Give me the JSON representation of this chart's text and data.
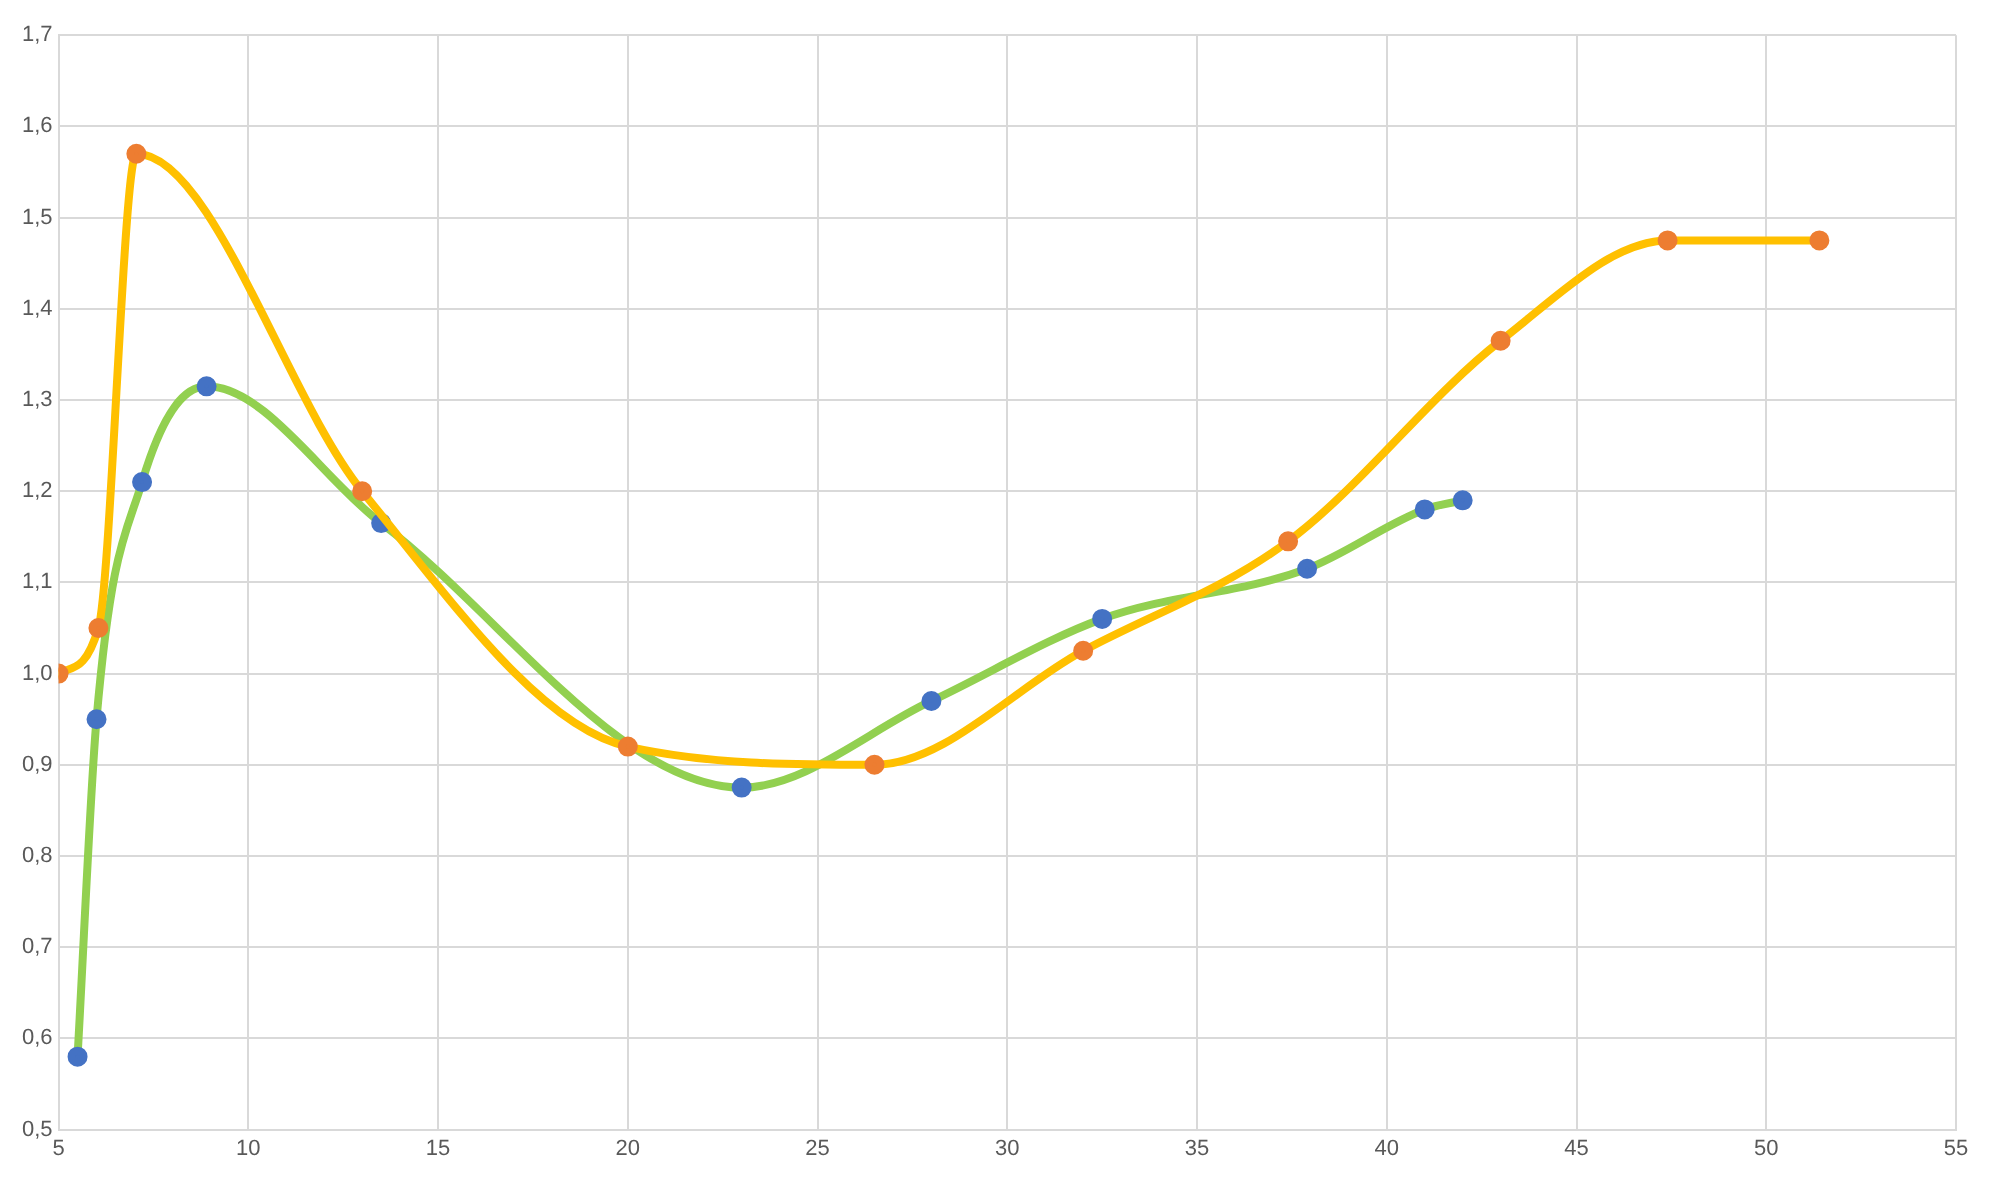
{
  "chart_data": {
    "type": "line",
    "marker": "circle",
    "grid": true,
    "legend": false,
    "xlim": [
      5,
      55
    ],
    "xticks": [
      5,
      10,
      15,
      20,
      25,
      30,
      35,
      40,
      45,
      50,
      55
    ],
    "ylim": [
      0.5,
      1.7
    ],
    "yticks": [
      {
        "value": 0.5,
        "label": "0,5"
      },
      {
        "value": 0.6,
        "label": "0,6"
      },
      {
        "value": 0.7,
        "label": "0,7"
      },
      {
        "value": 0.8,
        "label": "0,8"
      },
      {
        "value": 0.9,
        "label": "0,9"
      },
      {
        "value": 1.0,
        "label": "1,0"
      },
      {
        "value": 1.1,
        "label": "1,1"
      },
      {
        "value": 1.2,
        "label": "1,2"
      },
      {
        "value": 1.3,
        "label": "1,3"
      },
      {
        "value": 1.4,
        "label": "1,4"
      },
      {
        "value": 1.5,
        "label": "1,5"
      },
      {
        "value": 1.6,
        "label": "1,6"
      },
      {
        "value": 1.7,
        "label": "1,7"
      }
    ],
    "series": [
      {
        "color": "#ffc000",
        "x": [
          5,
          6.05,
          7.05,
          13,
          20,
          26.5,
          32,
          37.4,
          43,
          47.4,
          51.4
        ],
        "values": [
          1.0,
          1.05,
          1.57,
          1.2,
          0.92,
          0.9,
          1.025,
          1.145,
          1.365,
          1.475,
          1.475
        ],
        "colors": [
          "#ed7d31",
          "#ed7d31",
          "#ed7d31",
          "#ed7d31",
          "#ed7d31",
          "#ed7d31",
          "#ed7d31",
          "#ed7d31",
          "#ed7d31",
          "#ed7d31",
          "#ed7d31"
        ]
      },
      {
        "color": "#92d050",
        "x": [
          5.5,
          6.0,
          7.2,
          8.9,
          13.5,
          23,
          28,
          32.5,
          37.9,
          41,
          42
        ],
        "values": [
          0.58,
          0.95,
          1.21,
          1.315,
          1.165,
          0.875,
          0.97,
          1.06,
          1.115,
          1.18,
          1.19
        ],
        "colors": [
          "#4472c4",
          "#4472c4",
          "#4472c4",
          "#4472c4",
          "#4472c4",
          "#4472c4",
          "#4472c4",
          "#4472c4",
          "#4472c4",
          "#4472c4",
          "#4472c4"
        ]
      }
    ]
  }
}
